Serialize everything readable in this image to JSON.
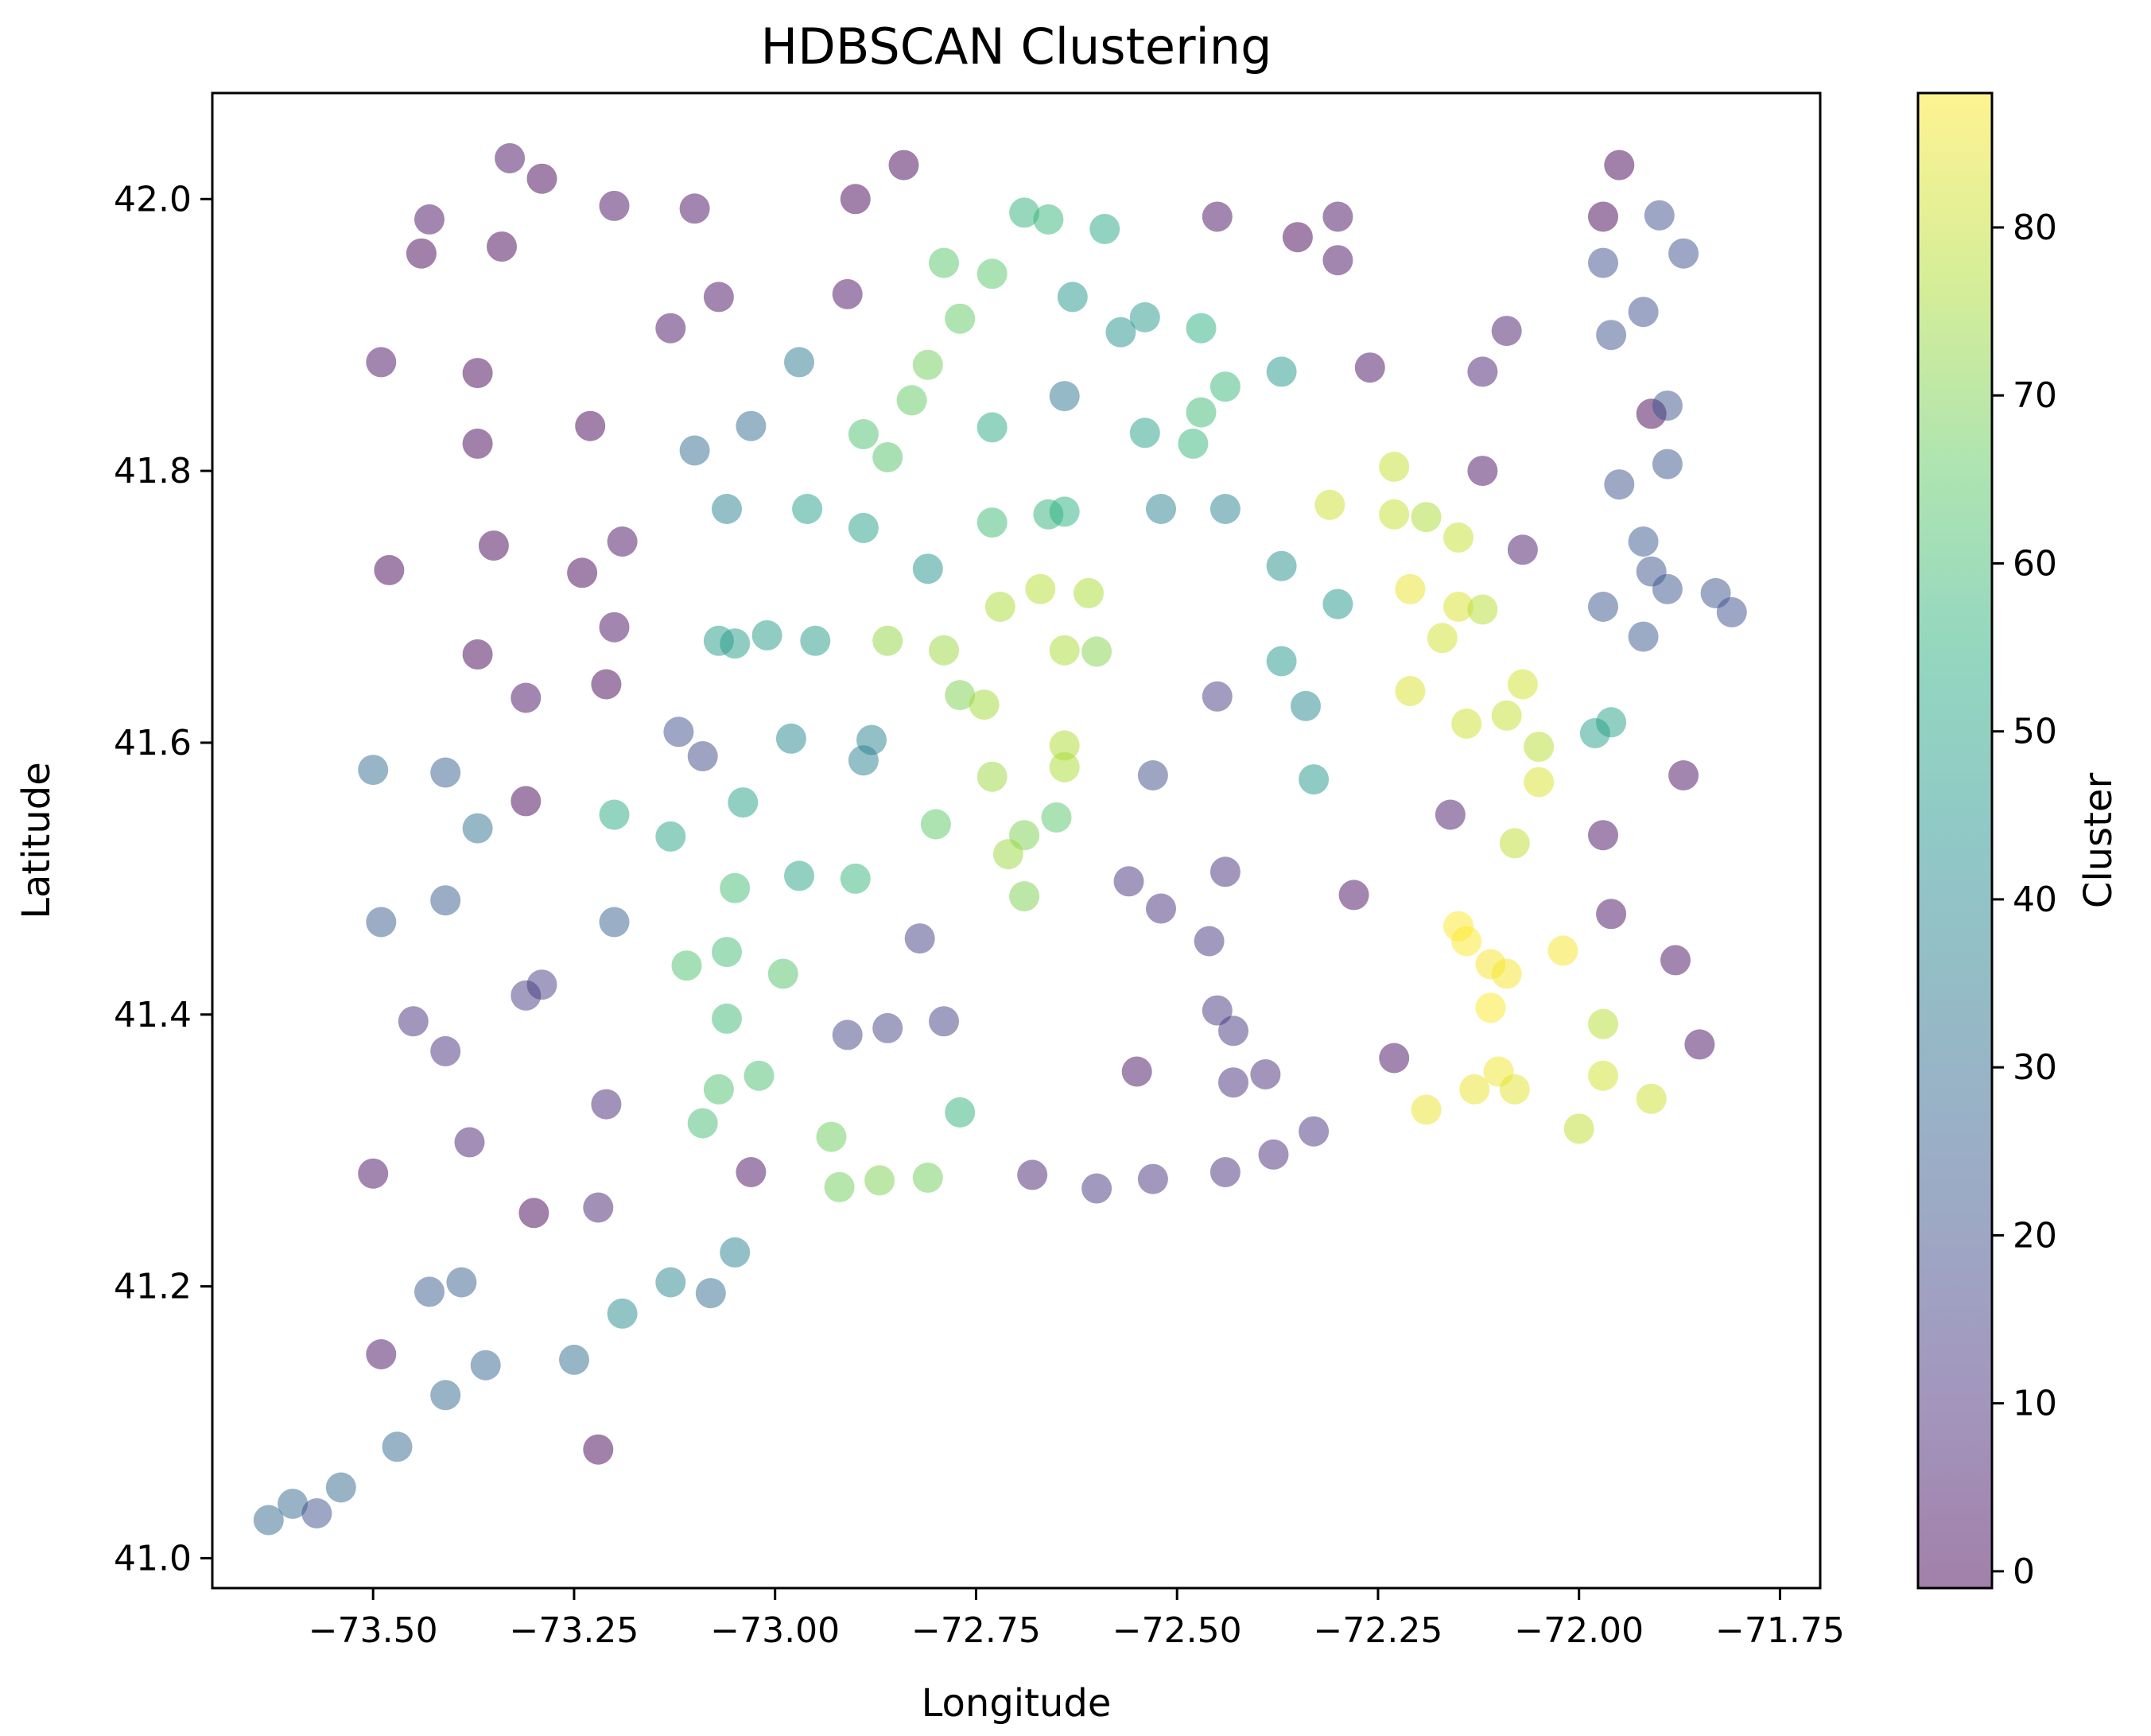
{
  "chart_data": {
    "type": "scatter",
    "title": "HDBSCAN Clustering",
    "xlabel": "Longitude",
    "ylabel": "Latitude",
    "xlim": [
      -73.7,
      -71.7
    ],
    "ylim": [
      40.978,
      42.078
    ],
    "xticks": [
      -73.5,
      -73.25,
      -73.0,
      -72.75,
      -72.5,
      -72.25,
      -72.0,
      -71.75
    ],
    "xtick_labels": [
      "−73.50",
      "−73.25",
      "−73.00",
      "−72.75",
      "−72.50",
      "−72.25",
      "−72.00",
      "−71.75"
    ],
    "yticks": [
      41.0,
      41.2,
      41.4,
      41.6,
      41.8,
      42.0
    ],
    "ytick_labels": [
      "41.0",
      "41.2",
      "41.4",
      "41.6",
      "41.8",
      "42.0"
    ],
    "colorbar": {
      "label": "Cluster",
      "range": [
        -1,
        88
      ],
      "ticks": [
        0,
        10,
        20,
        30,
        40,
        50,
        60,
        70,
        80
      ],
      "tick_labels": [
        "0",
        "10",
        "20",
        "30",
        "40",
        "50",
        "60",
        "70",
        "80"
      ],
      "colormap": "viridis",
      "alpha": 0.5
    },
    "points": [
      [
        -73.33,
        42.03,
        2
      ],
      [
        -73.29,
        42.015,
        -1
      ],
      [
        -73.43,
        41.985,
        2
      ],
      [
        -73.44,
        41.96,
        -1
      ],
      [
        -73.34,
        41.965,
        -1
      ],
      [
        -73.2,
        41.995,
        2
      ],
      [
        -73.1,
        41.993,
        2
      ],
      [
        -72.84,
        42.025,
        -1
      ],
      [
        -72.9,
        42.0,
        -1
      ],
      [
        -73.07,
        41.928,
        2
      ],
      [
        -72.91,
        41.93,
        2
      ],
      [
        -73.13,
        41.905,
        3
      ],
      [
        -73.49,
        41.88,
        2
      ],
      [
        -73.37,
        41.872,
        -1
      ],
      [
        -73.23,
        41.833,
        -1
      ],
      [
        -73.37,
        41.82,
        -1
      ],
      [
        -73.48,
        41.727,
        -1
      ],
      [
        -73.35,
        41.745,
        -1
      ],
      [
        -73.19,
        41.748,
        2
      ],
      [
        -73.24,
        41.725,
        -1
      ],
      [
        -73.2,
        41.685,
        2
      ],
      [
        -73.37,
        41.665,
        -1
      ],
      [
        -73.31,
        41.633,
        2
      ],
      [
        -73.21,
        41.643,
        -1
      ],
      [
        -73.5,
        41.58,
        30
      ],
      [
        -73.41,
        41.578,
        25
      ],
      [
        -73.37,
        41.537,
        32
      ],
      [
        -73.31,
        41.557,
        -1
      ],
      [
        -73.49,
        41.468,
        24
      ],
      [
        -73.41,
        41.484,
        24
      ],
      [
        -73.2,
        41.468,
        25
      ],
      [
        -73.29,
        41.422,
        14
      ],
      [
        -73.31,
        41.414,
        14
      ],
      [
        -73.45,
        41.395,
        10
      ],
      [
        -73.41,
        41.373,
        10
      ],
      [
        -73.38,
        41.306,
        6
      ],
      [
        -73.21,
        41.334,
        8
      ],
      [
        -73.3,
        41.254,
        -1
      ],
      [
        -73.22,
        41.258,
        7
      ],
      [
        -73.5,
        41.283,
        2
      ],
      [
        -73.49,
        41.15,
        2
      ],
      [
        -73.43,
        41.196,
        24
      ],
      [
        -73.39,
        41.203,
        26
      ],
      [
        -73.36,
        41.142,
        27
      ],
      [
        -73.41,
        41.12,
        28
      ],
      [
        -73.25,
        41.146,
        31
      ],
      [
        -73.47,
        41.082,
        28
      ],
      [
        -73.54,
        41.052,
        29
      ],
      [
        -73.6,
        41.04,
        29
      ],
      [
        -73.57,
        41.033,
        20
      ],
      [
        -73.63,
        41.028,
        28
      ],
      [
        -73.22,
        41.08,
        -1
      ],
      [
        -73.19,
        41.18,
        41
      ],
      [
        -73.13,
        41.203,
        39
      ],
      [
        -73.08,
        41.195,
        30
      ],
      [
        -73.05,
        41.225,
        38
      ],
      [
        -73.12,
        41.608,
        20
      ],
      [
        -73.09,
        41.59,
        18
      ],
      [
        -73.1,
        41.815,
        30
      ],
      [
        -73.03,
        41.833,
        30
      ],
      [
        -72.97,
        41.88,
        35
      ],
      [
        -73.06,
        41.772,
        38
      ],
      [
        -73.07,
        41.675,
        47
      ],
      [
        -73.05,
        41.673,
        47
      ],
      [
        -73.01,
        41.679,
        47
      ],
      [
        -72.96,
        41.772,
        48
      ],
      [
        -72.95,
        41.675,
        47
      ],
      [
        -72.89,
        41.758,
        48
      ],
      [
        -72.98,
        41.603,
        40
      ],
      [
        -72.88,
        41.602,
        37
      ],
      [
        -72.89,
        41.587,
        37
      ],
      [
        -73.13,
        41.531,
        50
      ],
      [
        -73.04,
        41.556,
        49
      ],
      [
        -73.2,
        41.547,
        53
      ],
      [
        -73.05,
        41.493,
        60
      ],
      [
        -72.97,
        41.502,
        50
      ],
      [
        -72.9,
        41.5,
        57
      ],
      [
        -73.11,
        41.436,
        62
      ],
      [
        -73.06,
        41.446,
        60
      ],
      [
        -72.99,
        41.43,
        63
      ],
      [
        -73.06,
        41.397,
        59
      ],
      [
        -73.02,
        41.355,
        61
      ],
      [
        -73.07,
        41.345,
        62
      ],
      [
        -73.09,
        41.32,
        60
      ],
      [
        -72.93,
        41.31,
        67
      ],
      [
        -72.92,
        41.273,
        68
      ],
      [
        -72.87,
        41.278,
        70
      ],
      [
        -72.81,
        41.28,
        68
      ],
      [
        -72.77,
        41.328,
        56
      ],
      [
        -72.91,
        41.385,
        16
      ],
      [
        -72.86,
        41.39,
        16
      ],
      [
        -72.79,
        41.395,
        15
      ],
      [
        -72.82,
        41.456,
        15
      ],
      [
        -73.03,
        41.284,
        2
      ],
      [
        -72.89,
        41.827,
        62
      ],
      [
        -72.86,
        41.81,
        63
      ],
      [
        -72.83,
        41.852,
        66
      ],
      [
        -72.81,
        41.878,
        68
      ],
      [
        -72.77,
        41.912,
        66
      ],
      [
        -72.73,
        41.945,
        64
      ],
      [
        -72.79,
        41.953,
        64
      ],
      [
        -72.69,
        41.99,
        56
      ],
      [
        -72.66,
        41.985,
        57
      ],
      [
        -72.59,
        41.978,
        51
      ],
      [
        -72.63,
        41.928,
        45
      ],
      [
        -72.57,
        41.902,
        44
      ],
      [
        -72.54,
        41.913,
        46
      ],
      [
        -72.47,
        41.905,
        55
      ],
      [
        -72.44,
        41.862,
        58
      ],
      [
        -72.47,
        41.843,
        59
      ],
      [
        -72.48,
        41.82,
        57
      ],
      [
        -72.54,
        41.828,
        49
      ],
      [
        -72.64,
        41.855,
        33
      ],
      [
        -72.73,
        41.832,
        53
      ],
      [
        -72.52,
        41.772,
        37
      ],
      [
        -72.44,
        41.772,
        38
      ],
      [
        -72.81,
        41.728,
        44
      ],
      [
        -72.66,
        41.768,
        56
      ],
      [
        -72.64,
        41.77,
        55
      ],
      [
        -72.73,
        41.762,
        59
      ],
      [
        -72.72,
        41.7,
        76
      ],
      [
        -72.67,
        41.713,
        78
      ],
      [
        -72.61,
        41.71,
        76
      ],
      [
        -72.86,
        41.675,
        73
      ],
      [
        -72.79,
        41.668,
        74
      ],
      [
        -72.64,
        41.668,
        76
      ],
      [
        -72.6,
        41.667,
        71
      ],
      [
        -72.77,
        41.635,
        70
      ],
      [
        -72.74,
        41.628,
        75
      ],
      [
        -72.64,
        41.598,
        77
      ],
      [
        -72.64,
        41.582,
        76
      ],
      [
        -72.73,
        41.575,
        74
      ],
      [
        -72.69,
        41.532,
        70
      ],
      [
        -72.71,
        41.518,
        74
      ],
      [
        -72.8,
        41.54,
        65
      ],
      [
        -72.65,
        41.545,
        64
      ],
      [
        -72.69,
        41.487,
        70
      ],
      [
        -72.56,
        41.498,
        11
      ],
      [
        -72.52,
        41.478,
        10
      ],
      [
        -72.44,
        41.505,
        10
      ],
      [
        -72.53,
        41.576,
        19
      ],
      [
        -72.45,
        41.634,
        14
      ],
      [
        -72.46,
        41.454,
        12
      ],
      [
        -72.45,
        41.403,
        12
      ],
      [
        -72.43,
        41.388,
        12
      ],
      [
        -72.43,
        41.35,
        10
      ],
      [
        -72.39,
        41.356,
        9
      ],
      [
        -72.55,
        41.358,
        3
      ],
      [
        -72.68,
        41.282,
        7
      ],
      [
        -72.6,
        41.272,
        12
      ],
      [
        -72.53,
        41.279,
        11
      ],
      [
        -72.44,
        41.284,
        10
      ],
      [
        -72.38,
        41.297,
        9
      ],
      [
        -72.33,
        41.314,
        11
      ],
      [
        -72.45,
        41.987,
        2
      ],
      [
        -72.35,
        41.972,
        -1
      ],
      [
        -72.3,
        41.987,
        2
      ],
      [
        -72.3,
        41.955,
        2
      ],
      [
        -72.26,
        41.876,
        2
      ],
      [
        -72.37,
        41.873,
        45
      ],
      [
        -72.37,
        41.73,
        43
      ],
      [
        -72.3,
        41.702,
        45
      ],
      [
        -72.37,
        41.66,
        45
      ],
      [
        -72.34,
        41.627,
        40
      ],
      [
        -72.33,
        41.573,
        45
      ],
      [
        -72.23,
        41.803,
        80
      ],
      [
        -72.31,
        41.775,
        81
      ],
      [
        -72.23,
        41.768,
        80
      ],
      [
        -72.19,
        41.766,
        76
      ],
      [
        -72.15,
        41.751,
        80
      ],
      [
        -72.21,
        41.713,
        85
      ],
      [
        -72.15,
        41.7,
        83
      ],
      [
        -72.12,
        41.698,
        78
      ],
      [
        -72.17,
        41.677,
        82
      ],
      [
        -72.21,
        41.638,
        83
      ],
      [
        -72.14,
        41.614,
        81
      ],
      [
        -72.09,
        41.62,
        80
      ],
      [
        -72.07,
        41.643,
        82
      ],
      [
        -72.05,
        41.597,
        78
      ],
      [
        -72.05,
        41.571,
        83
      ],
      [
        -72.08,
        41.526,
        79
      ],
      [
        -72.12,
        41.8,
        2
      ],
      [
        -72.12,
        41.873,
        6
      ],
      [
        -72.09,
        41.903,
        5
      ],
      [
        -72.07,
        41.742,
        4
      ],
      [
        -72.16,
        41.547,
        4
      ],
      [
        -72.28,
        41.488,
        2
      ],
      [
        -72.23,
        41.368,
        2
      ],
      [
        -72.15,
        41.465,
        88
      ],
      [
        -72.14,
        41.454,
        88
      ],
      [
        -72.11,
        41.437,
        87
      ],
      [
        -72.09,
        41.43,
        87
      ],
      [
        -72.11,
        41.405,
        88
      ],
      [
        -72.02,
        41.447,
        87
      ],
      [
        -72.1,
        41.358,
        86
      ],
      [
        -72.13,
        41.345,
        85
      ],
      [
        -72.08,
        41.345,
        84
      ],
      [
        -72.19,
        41.33,
        85
      ],
      [
        -72.0,
        41.316,
        79
      ],
      [
        -71.97,
        41.393,
        78
      ],
      [
        -71.97,
        41.355,
        82
      ],
      [
        -71.91,
        41.338,
        81
      ],
      [
        -71.97,
        41.532,
        2
      ],
      [
        -71.96,
        41.474,
        2
      ],
      [
        -71.88,
        41.44,
        2
      ],
      [
        -71.85,
        41.378,
        2
      ],
      [
        -71.87,
        41.576,
        2
      ],
      [
        -71.98,
        41.607,
        48
      ],
      [
        -71.96,
        41.615,
        49
      ],
      [
        -71.97,
        41.987,
        -1
      ],
      [
        -71.95,
        42.025,
        -1
      ],
      [
        -71.9,
        41.988,
        20
      ],
      [
        -71.97,
        41.953,
        20
      ],
      [
        -71.87,
        41.96,
        20
      ],
      [
        -71.92,
        41.917,
        20
      ],
      [
        -71.96,
        41.9,
        21
      ],
      [
        -71.91,
        41.842,
        -1
      ],
      [
        -71.89,
        41.848,
        21
      ],
      [
        -71.89,
        41.805,
        22
      ],
      [
        -71.95,
        41.79,
        21
      ],
      [
        -71.92,
        41.748,
        23
      ],
      [
        -71.91,
        41.726,
        21
      ],
      [
        -71.89,
        41.713,
        22
      ],
      [
        -71.97,
        41.7,
        22
      ],
      [
        -71.92,
        41.678,
        23
      ],
      [
        -71.83,
        41.71,
        21
      ],
      [
        -71.81,
        41.696,
        20
      ]
    ]
  }
}
